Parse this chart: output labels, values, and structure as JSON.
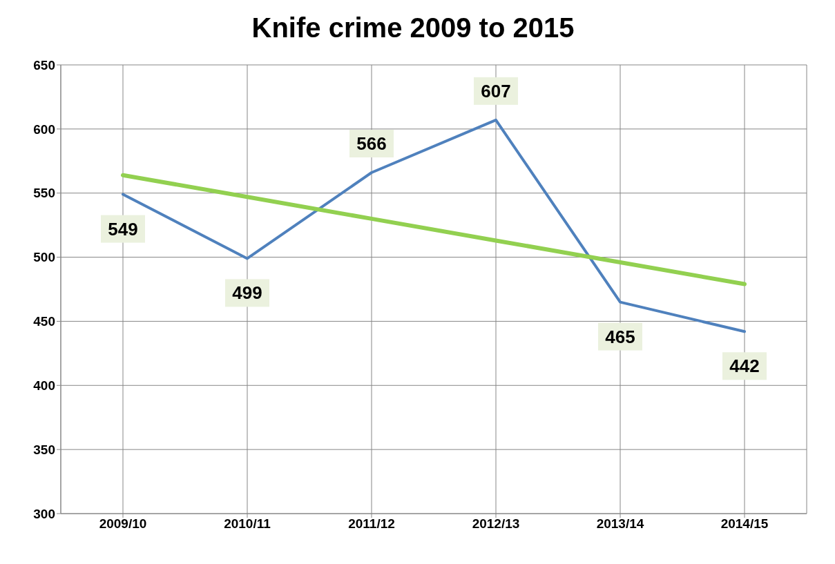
{
  "chart_data": {
    "type": "line",
    "title": "Knife crime 2009 to 2015",
    "categories": [
      "2009/10",
      "2010/11",
      "2011/12",
      "2012/13",
      "2013/14",
      "2014/15"
    ],
    "series": [
      {
        "color": "#4f81bd",
        "values": [
          549,
          499,
          566,
          607,
          465,
          442
        ],
        "value_labels": [
          "549",
          "499",
          "566",
          "607",
          "465",
          "442"
        ]
      },
      {
        "type": "line",
        "color": "#92d050",
        "values": [
          564,
          547,
          530,
          513,
          496,
          479
        ]
      }
    ],
    "ylim": [
      300,
      650
    ],
    "yticks": [
      300,
      350,
      400,
      450,
      500,
      550,
      600,
      650
    ],
    "grid": true,
    "legend": false,
    "marker": "none",
    "line_style": "solid"
  }
}
